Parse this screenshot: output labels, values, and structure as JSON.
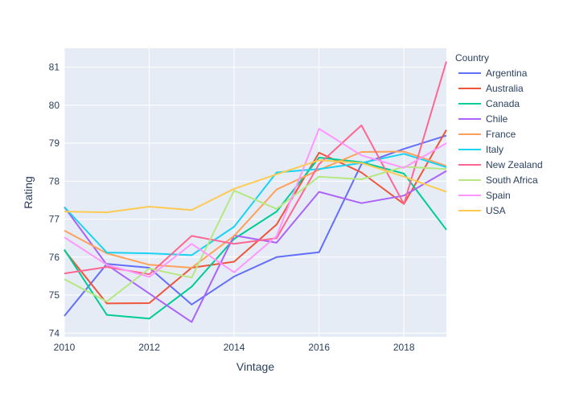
{
  "chart_data": {
    "type": "line",
    "xlabel": "Vintage",
    "ylabel": "Rating",
    "xlim": [
      2010,
      2019
    ],
    "ylim": [
      73.9,
      81.5
    ],
    "xticks": [
      2010,
      2012,
      2014,
      2016,
      2018
    ],
    "yticks": [
      74,
      75,
      76,
      77,
      78,
      79,
      80,
      81
    ],
    "grid": true,
    "legend": {
      "title": "Country",
      "position": "right"
    },
    "x": [
      2010,
      2011,
      2012,
      2013,
      2014,
      2015,
      2016,
      2017,
      2018,
      2019
    ],
    "series": [
      {
        "name": "Argentina",
        "color": "#636efa",
        "values": [
          74.45,
          75.82,
          75.72,
          74.75,
          75.49,
          76.0,
          76.13,
          78.45,
          78.85,
          79.2
        ]
      },
      {
        "name": "Australia",
        "color": "#EF553B",
        "values": [
          76.18,
          74.78,
          74.79,
          75.72,
          75.88,
          76.86,
          78.75,
          78.23,
          77.4,
          79.35
        ]
      },
      {
        "name": "Canada",
        "color": "#00cc96",
        "values": [
          76.2,
          74.48,
          74.38,
          75.22,
          76.48,
          77.2,
          78.62,
          78.5,
          78.2,
          76.72
        ]
      },
      {
        "name": "Chile",
        "color": "#ab63fa",
        "values": [
          77.32,
          75.8,
          75.04,
          74.29,
          76.57,
          76.38,
          77.72,
          77.42,
          77.62,
          78.27
        ]
      },
      {
        "name": "France",
        "color": "#FFA15A",
        "values": [
          76.7,
          76.1,
          75.8,
          75.72,
          76.56,
          77.78,
          78.3,
          78.77,
          78.78,
          78.4
        ]
      },
      {
        "name": "Italy",
        "color": "#19d3f3",
        "values": [
          77.32,
          76.12,
          76.1,
          76.05,
          76.8,
          78.23,
          78.32,
          78.48,
          78.72,
          78.37
        ]
      },
      {
        "name": "New Zealand",
        "color": "#FF6692",
        "values": [
          75.57,
          75.74,
          75.55,
          76.56,
          76.35,
          76.5,
          78.45,
          79.47,
          77.4,
          81.15
        ]
      },
      {
        "name": "South Africa",
        "color": "#B6E880",
        "values": [
          75.42,
          74.83,
          75.7,
          75.46,
          77.75,
          77.27,
          78.12,
          78.05,
          78.38,
          78.32
        ]
      },
      {
        "name": "Spain",
        "color": "#FF97FF",
        "values": [
          76.52,
          75.8,
          75.48,
          76.35,
          75.6,
          76.55,
          79.38,
          78.68,
          78.35,
          79.0
        ]
      },
      {
        "name": "USA",
        "color": "#FECB52",
        "values": [
          77.2,
          77.18,
          77.33,
          77.24,
          77.8,
          78.18,
          78.55,
          78.48,
          78.12,
          77.72
        ]
      }
    ]
  }
}
